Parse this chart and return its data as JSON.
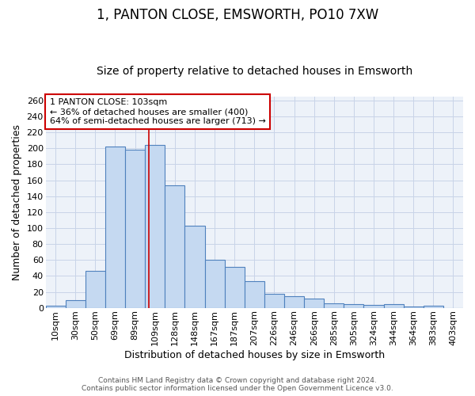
{
  "title1": "1, PANTON CLOSE, EMSWORTH, PO10 7XW",
  "title2": "Size of property relative to detached houses in Emsworth",
  "xlabel": "Distribution of detached houses by size in Emsworth",
  "ylabel": "Number of detached properties",
  "categories": [
    "10sqm",
    "30sqm",
    "50sqm",
    "69sqm",
    "89sqm",
    "109sqm",
    "128sqm",
    "148sqm",
    "167sqm",
    "187sqm",
    "207sqm",
    "226sqm",
    "246sqm",
    "266sqm",
    "285sqm",
    "305sqm",
    "324sqm",
    "344sqm",
    "364sqm",
    "383sqm",
    "403sqm"
  ],
  "values": [
    3,
    10,
    46,
    202,
    198,
    204,
    154,
    103,
    60,
    51,
    33,
    18,
    15,
    12,
    6,
    5,
    4,
    5,
    2,
    3,
    0
  ],
  "bar_color": "#c5d9f1",
  "bar_edge_color": "#4f81bd",
  "ylim": [
    0,
    265
  ],
  "yticks": [
    0,
    20,
    40,
    60,
    80,
    100,
    120,
    140,
    160,
    180,
    200,
    220,
    240,
    260
  ],
  "annotation_line1": "1 PANTON CLOSE: 103sqm",
  "annotation_line2": "← 36% of detached houses are smaller (400)",
  "annotation_line3": "64% of semi-detached houses are larger (713) →",
  "footer1": "Contains HM Land Registry data © Crown copyright and database right 2024.",
  "footer2": "Contains public sector information licensed under the Open Government Licence v3.0.",
  "title1_fontsize": 12,
  "title2_fontsize": 10,
  "tick_fontsize": 8,
  "ylabel_fontsize": 9,
  "xlabel_fontsize": 9,
  "annot_fontsize": 8,
  "footer_fontsize": 6.5,
  "grid_color": "#c8d4e8",
  "plot_bg_color": "#edf2f9",
  "fig_bg_color": "#ffffff",
  "red_line_color": "#cc0000",
  "annot_box_edge_color": "#cc0000",
  "annot_box_face_color": "#ffffff"
}
